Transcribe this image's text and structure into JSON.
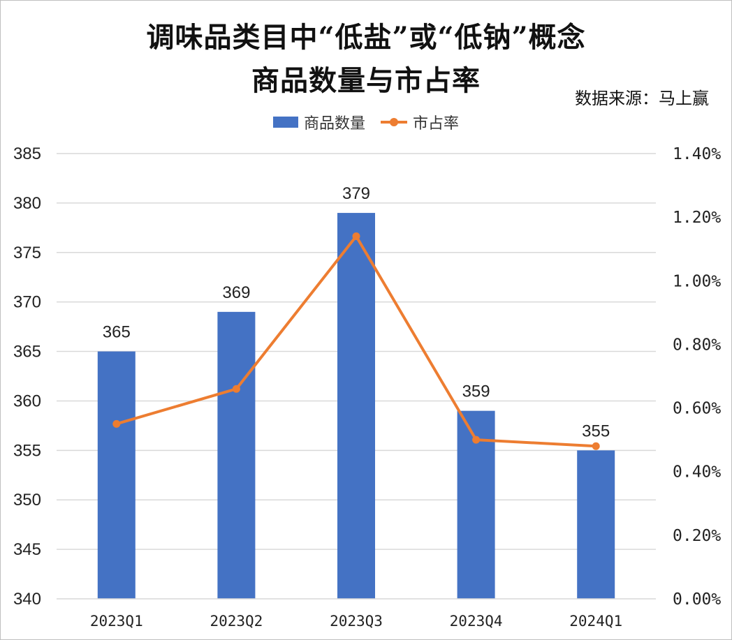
{
  "title_line1": "调味品类目中“低盐”或“低钠”概念",
  "title_line2": "商品数量与市占率",
  "source": "数据来源：马上赢",
  "colors": {
    "bar": "#4472c4",
    "line": "#ed7d31",
    "grid": "#d9d9d9"
  },
  "chart_data": {
    "type": "bar",
    "categories": [
      "2023Q1",
      "2023Q2",
      "2023Q3",
      "2023Q4",
      "2024Q1"
    ],
    "series": [
      {
        "name": "商品数量",
        "type": "bar",
        "axis": "left",
        "values": [
          365,
          369,
          379,
          359,
          355
        ],
        "data_labels": [
          "365",
          "369",
          "379",
          "359",
          "355"
        ]
      },
      {
        "name": "市占率",
        "type": "line",
        "axis": "right",
        "values": [
          0.55,
          0.66,
          1.14,
          0.5,
          0.48
        ]
      }
    ],
    "ylim_left": [
      340,
      385
    ],
    "yticks_left": [
      "340",
      "345",
      "350",
      "355",
      "360",
      "365",
      "370",
      "375",
      "380",
      "385"
    ],
    "ylim_right": [
      0,
      1.4
    ],
    "yticks_right": [
      "0.00%",
      "0.20%",
      "0.40%",
      "0.60%",
      "0.80%",
      "1.00%",
      "1.20%",
      "1.40%"
    ],
    "grid": true,
    "legend": "top-center"
  }
}
